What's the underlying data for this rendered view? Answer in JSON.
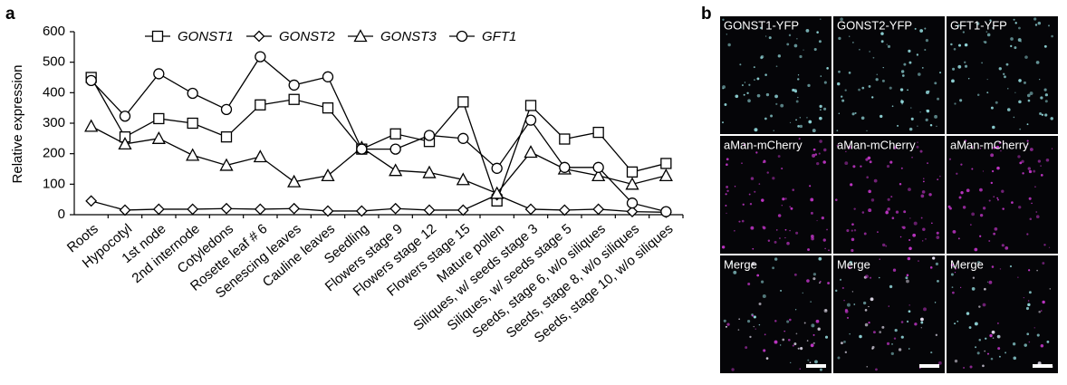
{
  "panel_labels": [
    "a",
    "b"
  ],
  "chart_data": {
    "type": "line",
    "y_label": "Relative expression",
    "categories": [
      "Roots",
      "Hypocotyl",
      "1st node",
      "2nd internode",
      "Cotyledons",
      "Rosette leaf # 6",
      "Senescing leaves",
      "Cauline leaves",
      "Seedling",
      "Flowers stage 9",
      "Flowers stage 12",
      "Flowers stage 15",
      "Mature pollen",
      "Siliques, w/ seeds stage 3",
      "Siliques, w/ seeds stage 5",
      "Seeds, stage 6, w/o siliques",
      "Seeds, stage 8, w/o siliques",
      "Seeds, stage 10, w/o siliques"
    ],
    "series": [
      {
        "name": "GONST1",
        "marker": "square",
        "color": "#000000",
        "values": [
          450,
          255,
          315,
          300,
          255,
          360,
          378,
          350,
          215,
          265,
          240,
          370,
          45,
          358,
          248,
          270,
          140,
          168
        ]
      },
      {
        "name": "GONST2",
        "marker": "diamond",
        "color": "#000000",
        "values": [
          45,
          15,
          18,
          18,
          20,
          18,
          20,
          12,
          12,
          20,
          15,
          15,
          65,
          18,
          15,
          18,
          10,
          8
        ]
      },
      {
        "name": "GONST3",
        "marker": "triangle",
        "color": "#000000",
        "values": [
          290,
          232,
          250,
          195,
          162,
          190,
          108,
          128,
          220,
          145,
          138,
          115,
          70,
          205,
          150,
          128,
          100,
          128
        ]
      },
      {
        "name": "GFT1",
        "marker": "circle",
        "color": "#000000",
        "values": [
          440,
          323,
          462,
          398,
          345,
          518,
          425,
          452,
          215,
          215,
          260,
          250,
          152,
          310,
          155,
          155,
          38,
          10
        ]
      }
    ],
    "ylim": [
      0,
      600
    ],
    "yticks": [
      0,
      100,
      200,
      300,
      400,
      500,
      600
    ],
    "grid": false,
    "legend": "top"
  },
  "micrographs": {
    "rows": [
      [
        "GONST1-YFP",
        "GONST2-YFP",
        "GFT1-YFP"
      ],
      [
        "aMan-mCherry",
        "aMan-mCherry",
        "aMan-mCherry"
      ],
      [
        "Merge",
        "Merge",
        "Merge"
      ]
    ]
  }
}
